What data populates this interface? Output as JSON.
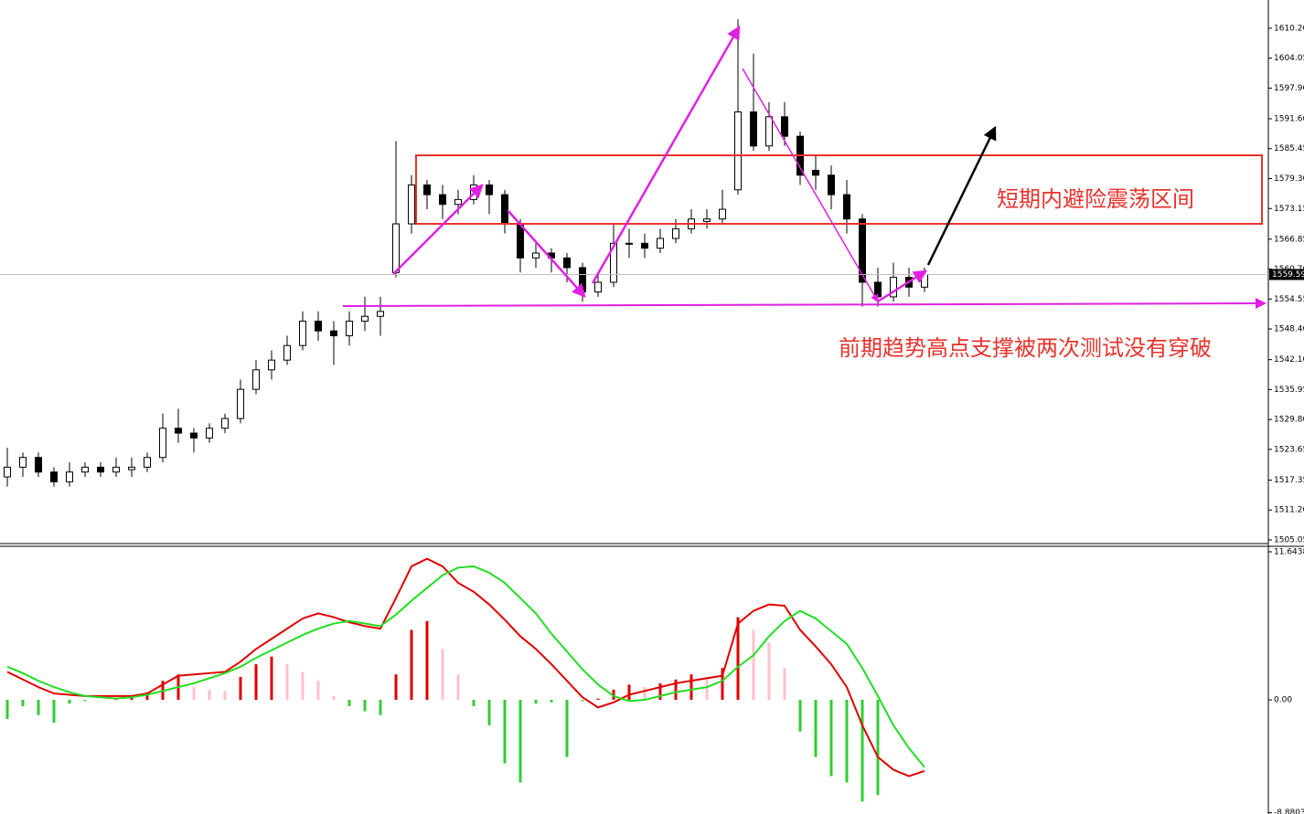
{
  "chart_data": [
    {
      "type": "candlestick",
      "candles": [
        [
          1518,
          1524,
          1516,
          1520
        ],
        [
          1520,
          1523,
          1518,
          1522
        ],
        [
          1522,
          1523,
          1518,
          1519
        ],
        [
          1519,
          1520,
          1516,
          1517
        ],
        [
          1517,
          1521,
          1516,
          1519
        ],
        [
          1519,
          1521,
          1518,
          1520
        ],
        [
          1520,
          1521,
          1518,
          1519
        ],
        [
          1519,
          1522,
          1518,
          1520
        ],
        [
          1519.5,
          1522,
          1518,
          1520
        ],
        [
          1520,
          1523,
          1519,
          1522
        ],
        [
          1522,
          1531,
          1521,
          1528
        ],
        [
          1528,
          1532,
          1525,
          1527
        ],
        [
          1527,
          1528,
          1523,
          1526
        ],
        [
          1526,
          1529,
          1525,
          1528
        ],
        [
          1528,
          1531,
          1527,
          1530
        ],
        [
          1530,
          1538,
          1529,
          1536
        ],
        [
          1536,
          1542,
          1535,
          1540
        ],
        [
          1540,
          1544,
          1538,
          1542
        ],
        [
          1542,
          1547,
          1541,
          1545
        ],
        [
          1545,
          1552,
          1544,
          1550
        ],
        [
          1550,
          1552,
          1546,
          1548
        ],
        [
          1548,
          1550,
          1541,
          1547
        ],
        [
          1547,
          1552,
          1545,
          1550
        ],
        [
          1550,
          1555,
          1548,
          1551
        ],
        [
          1551,
          1555,
          1547,
          1552
        ],
        [
          1560,
          1587,
          1559,
          1570
        ],
        [
          1570,
          1580,
          1568,
          1578
        ],
        [
          1578,
          1579,
          1573,
          1576
        ],
        [
          1576,
          1578,
          1571,
          1574
        ],
        [
          1574,
          1577,
          1572,
          1575
        ],
        [
          1575,
          1580,
          1574,
          1578
        ],
        [
          1578,
          1579,
          1572,
          1576
        ],
        [
          1576,
          1577,
          1568,
          1570
        ],
        [
          1570,
          1571,
          1560,
          1563
        ],
        [
          1563,
          1566,
          1561,
          1564
        ],
        [
          1564,
          1565,
          1560,
          1563
        ],
        [
          1563,
          1564,
          1558,
          1561
        ],
        [
          1561,
          1562,
          1554,
          1556
        ],
        [
          1556,
          1560,
          1555,
          1558
        ],
        [
          1558,
          1570,
          1557,
          1566
        ],
        [
          1566,
          1569,
          1563,
          1566
        ],
        [
          1566,
          1568,
          1563,
          1565
        ],
        [
          1565,
          1569,
          1564,
          1567
        ],
        [
          1567,
          1571,
          1566,
          1569
        ],
        [
          1569,
          1573,
          1568,
          1571
        ],
        [
          1570.5,
          1573,
          1569,
          1571
        ],
        [
          1571,
          1577,
          1570,
          1573
        ],
        [
          1577,
          1612,
          1576,
          1593
        ],
        [
          1593,
          1605,
          1585,
          1586
        ],
        [
          1586,
          1595,
          1585,
          1592
        ],
        [
          1592,
          1595,
          1586,
          1588
        ],
        [
          1588,
          1589,
          1578,
          1580
        ],
        [
          1581,
          1584,
          1577,
          1580
        ],
        [
          1580,
          1582,
          1573,
          1576
        ],
        [
          1576,
          1579,
          1568,
          1571
        ],
        [
          1571,
          1572,
          1553,
          1558
        ],
        [
          1558,
          1561,
          1553,
          1555
        ],
        [
          1555,
          1562,
          1554,
          1559
        ],
        [
          1559,
          1561,
          1555,
          1557
        ],
        [
          1557,
          1561,
          1556,
          1559.59
        ]
      ],
      "ylim": [
        1504.3,
        1616.0
      ],
      "yticks": [
        1505.05,
        {
          "value": 1511.2,
          "label": "1511.20"
        },
        1517.35,
        1523.65,
        {
          "value": 1529.8,
          "label": "1529.80"
        },
        1535.95,
        {
          "value": 1542.1,
          "label": "1542.10"
        },
        {
          "value": 1548.4,
          "label": "1548.40"
        },
        1554.55,
        {
          "value": 1560.7,
          "label": "1560.70"
        },
        1566.85,
        1573.15,
        {
          "value": 1579.3,
          "label": "1579.30"
        },
        1585.45,
        {
          "value": 1591.6,
          "label": "1591.60"
        },
        {
          "value": 1597.9,
          "label": "1597.90"
        },
        1604.05,
        {
          "value": 1610.2,
          "label": "1610.20"
        }
      ],
      "current_price": 1559.59,
      "colors": {
        "up": "#ffffff",
        "down": "#000000",
        "outline": "#000000"
      },
      "annotations": [
        "短期内避险震荡区间",
        "前期趋势高点支撑被两次测试没有穿破"
      ]
    },
    {
      "type": "macd",
      "histogram": [
        -1.5,
        -0.5,
        -1.2,
        -1.8,
        -0.3,
        -0.1,
        0,
        0.1,
        0.3,
        0.6,
        1.5,
        2.0,
        1.0,
        0.8,
        0.7,
        1.8,
        2.8,
        3.4,
        2.8,
        2.2,
        1.5,
        0.3,
        -0.5,
        -0.9,
        -1.2,
        2.0,
        5.5,
        6.2,
        4.0,
        2.0,
        -0.5,
        -2.0,
        -5.0,
        -6.5,
        -0.3,
        -0.2,
        -4.5,
        -0.1,
        0.1,
        0.8,
        1.2,
        1.0,
        1.3,
        1.6,
        2.0,
        1.8,
        2.5,
        6.5,
        5.5,
        4.5,
        2.5,
        -2.5,
        -4.5,
        -6.0,
        -6.5,
        -8.0,
        -7.5,
        null,
        null,
        null
      ],
      "series": [
        {
          "color": "#e00000",
          "values": [
            2.2,
            1.6,
            1.0,
            0.5,
            0.4,
            0.3,
            0.3,
            0.3,
            0.3,
            0.5,
            1.2,
            1.9,
            2.0,
            2.1,
            2.2,
            3.0,
            4.0,
            4.8,
            5.6,
            6.4,
            6.8,
            6.5,
            6.1,
            5.8,
            5.6,
            8.0,
            10.5,
            11.1,
            10.5,
            9.2,
            8.5,
            7.5,
            6.3,
            5.0,
            4.0,
            2.8,
            1.5,
            0.2,
            -0.6,
            -0.2,
            0.4,
            0.7,
            1.0,
            1.3,
            1.5,
            1.7,
            1.9,
            6.0,
            7.0,
            7.5,
            7.4,
            5.5,
            4.2,
            2.8,
            1.0,
            -2.0,
            -4.5,
            -5.5,
            -6.0,
            -5.6
          ]
        },
        {
          "color": "#22dd22",
          "values": [
            2.6,
            2.1,
            1.5,
            1.0,
            0.6,
            0.3,
            0.2,
            0.1,
            0.2,
            0.4,
            0.7,
            1.0,
            1.3,
            1.7,
            2.1,
            2.6,
            3.3,
            3.9,
            4.5,
            5.1,
            5.6,
            6.0,
            6.2,
            6.0,
            5.8,
            6.7,
            7.8,
            8.8,
            9.8,
            10.4,
            10.5,
            10.0,
            9.2,
            8.0,
            6.8,
            5.2,
            3.8,
            2.4,
            1.2,
            0.3,
            -0.1,
            0.0,
            0.3,
            0.6,
            0.8,
            1.0,
            1.5,
            2.6,
            3.5,
            5.0,
            6.2,
            7.0,
            6.4,
            5.4,
            4.4,
            2.5,
            0.3,
            -2.0,
            -3.8,
            -5.3
          ]
        }
      ],
      "colors": {
        "rising": "#e00000",
        "falling": "#ffc0cb",
        "negative": "#33cc33"
      },
      "ylim": [
        -8.98,
        12.075
      ],
      "yticks": [
        11.6438,
        {
          "value": 0,
          "label": "0.00"
        },
        -8.8803
      ]
    }
  ]
}
